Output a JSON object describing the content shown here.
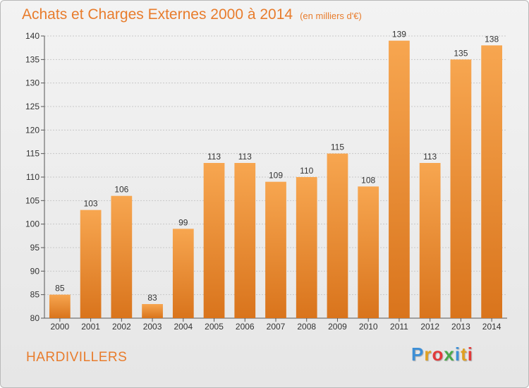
{
  "title": "Achats et Charges Externes 2000 à 2014",
  "unit_note": "(en milliers d'€)",
  "commune": "HARDIVILLERS",
  "brand": {
    "text": "Proxiti",
    "letter_colors": [
      "#3d8fd6",
      "#e0a020",
      "#e23a3a",
      "#4aa84a",
      "#3d8fd6",
      "#e0a020",
      "#e23a3a"
    ]
  },
  "colors": {
    "bar_light": "#f7a650",
    "bar_dark": "#d9741c",
    "title": "#e87c2c",
    "grid": "#c8c8c8"
  },
  "chart_data": {
    "type": "bar",
    "title": "Achats et Charges Externes 2000 à 2014",
    "subtitle": "(en milliers d'€)",
    "categories": [
      "2000",
      "2001",
      "2002",
      "2003",
      "2004",
      "2005",
      "2006",
      "2007",
      "2008",
      "2009",
      "2010",
      "2011",
      "2012",
      "2013",
      "2014"
    ],
    "values": [
      85,
      103,
      106,
      83,
      99,
      113,
      113,
      109,
      110,
      115,
      108,
      139,
      113,
      135,
      138
    ],
    "ylim": [
      80,
      140
    ],
    "yticks": [
      80,
      85,
      90,
      95,
      100,
      105,
      110,
      115,
      120,
      125,
      130,
      135,
      140
    ],
    "grid": true
  }
}
